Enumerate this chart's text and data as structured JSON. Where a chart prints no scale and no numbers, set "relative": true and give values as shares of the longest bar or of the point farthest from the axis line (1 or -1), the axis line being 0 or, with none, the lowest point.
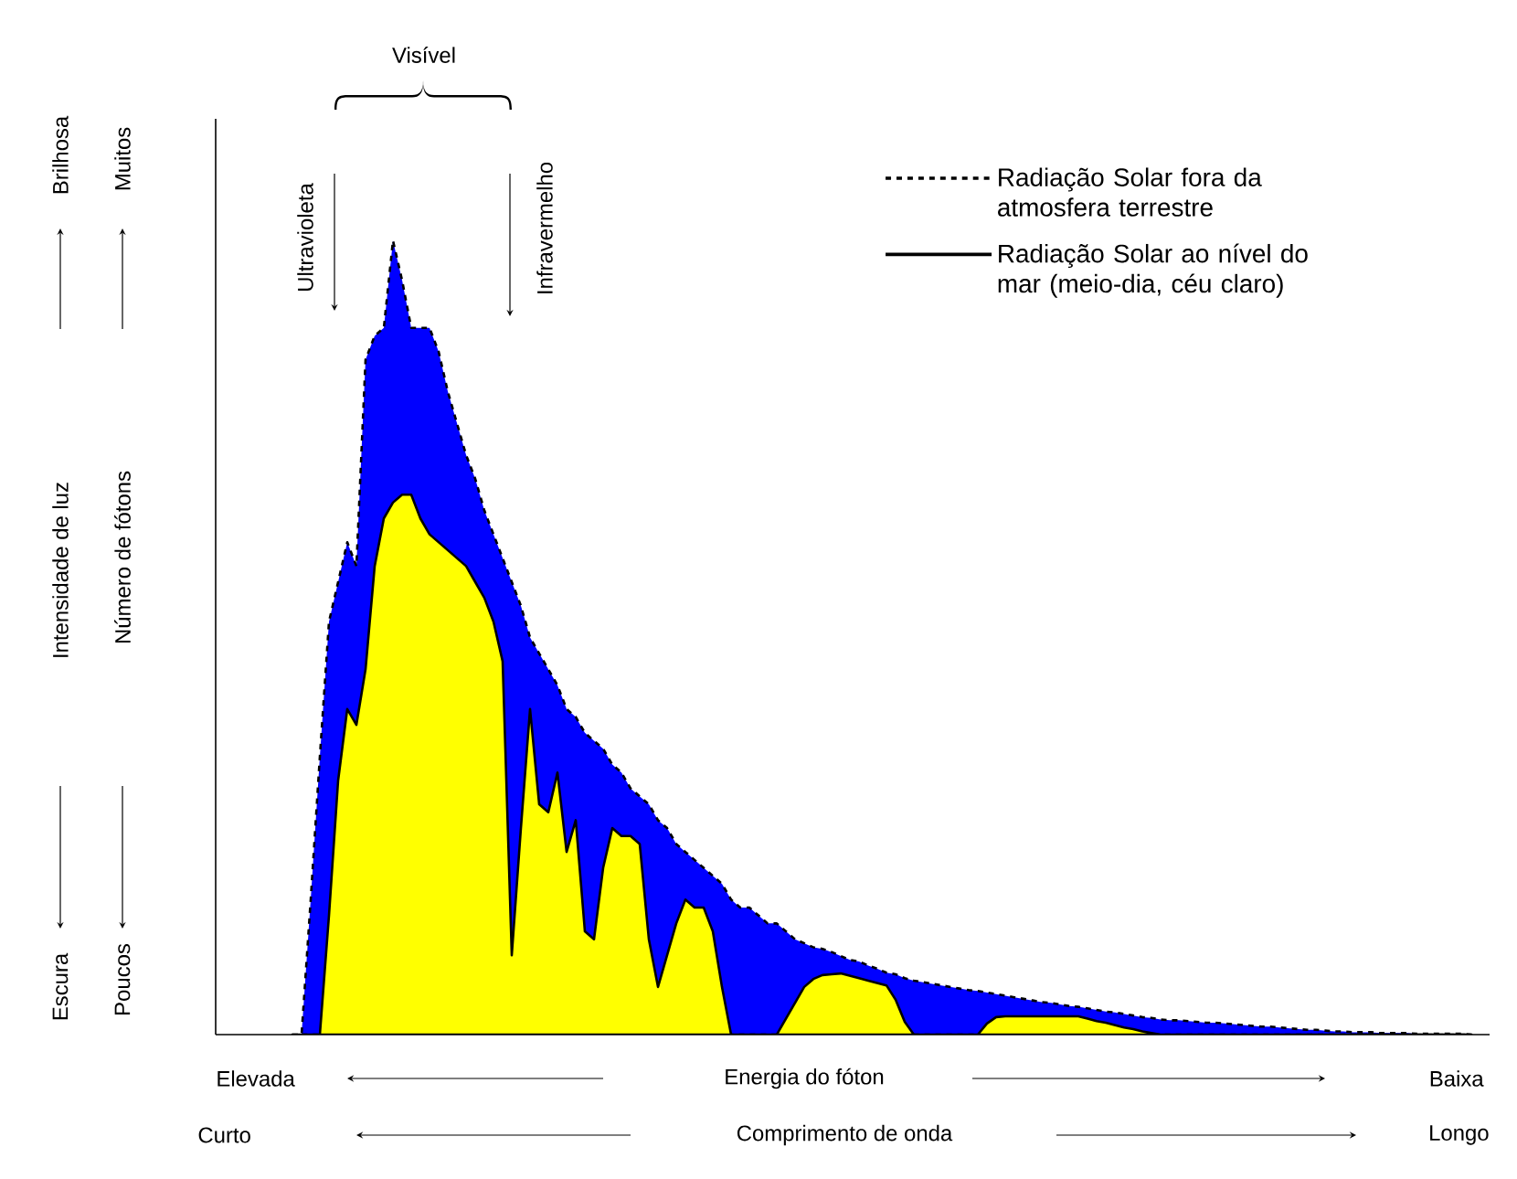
{
  "chart_data": {
    "type": "area",
    "relative": true,
    "legend": "top right",
    "categories": [
      null,
      null,
      null,
      null,
      null,
      null,
      null,
      null,
      null,
      null,
      null,
      null,
      null,
      null,
      null,
      null,
      null,
      null,
      null,
      null,
      null,
      null,
      null,
      null,
      null,
      null,
      null,
      null,
      null,
      null,
      null,
      null,
      null,
      null,
      null,
      null,
      null,
      null,
      null,
      null,
      null,
      null,
      null,
      null,
      null,
      null,
      null,
      null,
      null,
      null,
      null,
      null,
      null,
      null,
      null,
      null,
      null,
      null,
      null,
      null,
      null,
      null,
      null,
      null,
      null,
      null,
      null,
      null,
      null,
      null,
      null,
      null,
      null,
      null,
      null,
      null,
      null,
      null,
      null,
      null,
      null,
      null,
      null,
      null,
      null,
      null,
      null,
      null,
      null,
      null,
      null,
      null,
      null,
      null,
      null,
      null,
      null,
      null,
      null,
      null,
      null,
      null,
      null,
      null,
      null,
      null,
      null,
      null,
      null,
      null,
      null,
      null,
      null,
      null,
      null,
      null,
      null,
      null,
      null,
      null,
      null,
      null,
      null,
      null,
      null,
      null,
      null,
      null,
      null,
      null
    ],
    "series": [
      {
        "name": "Radiação Solar fora da atmosfera terrestre",
        "color": "#0000ff",
        "line_style": "dashed",
        "values": [
          0,
          0,
          0.17,
          0.35,
          0.52,
          0.57,
          0.62,
          0.59,
          0.85,
          0.88,
          0.89,
          1,
          0.95,
          0.89,
          0.89,
          0.89,
          0.86,
          0.81,
          0.77,
          0.73,
          0.7,
          0.66,
          0.63,
          0.6,
          0.57,
          0.54,
          0.5,
          0.48,
          0.46,
          0.44,
          0.41,
          0.4,
          0.38,
          0.37,
          0.36,
          0.34,
          0.33,
          0.31,
          0.3,
          0.29,
          0.27,
          0.26,
          0.24,
          0.23,
          0.22,
          0.21,
          0.2,
          0.19,
          0.17,
          0.16,
          0.16,
          0.15,
          0.14,
          0.14,
          0.13,
          0.12,
          0.115,
          0.11,
          0.108,
          0.104,
          0.099,
          0.094,
          0.092,
          0.087,
          0.083,
          0.078,
          0.076,
          0.071,
          0.068,
          0.066,
          0.064,
          0.062,
          0.06,
          0.058,
          0.056,
          0.055,
          0.053,
          0.051,
          0.049,
          0.047,
          0.045,
          0.043,
          0.041,
          0.04,
          0.038,
          0.036,
          0.035,
          0.033,
          0.031,
          0.029,
          0.028,
          0.026,
          0.024,
          0.022,
          0.021,
          0.019,
          0.018,
          0.018,
          0.017,
          0.016,
          0.015,
          0.015,
          0.014,
          0.013,
          0.012,
          0.011,
          0.01,
          0.01,
          0.009,
          0.008,
          0.007,
          0.006,
          0.006,
          0.005,
          0.004,
          0.004,
          0.003,
          0.003,
          0.003,
          0.002,
          0.002,
          0.002,
          0.002,
          0.001,
          0.001,
          0.001,
          0.001,
          0.001,
          0.001,
          0
        ]
      },
      {
        "name": "Radiação Solar ao nível do mar (meio-dia, céu claro)",
        "color": "#ffff00",
        "line_style": "solid",
        "values": [
          0,
          0,
          0,
          0,
          0.15,
          0.32,
          0.41,
          0.39,
          0.46,
          0.59,
          0.65,
          0.67,
          0.68,
          0.68,
          0.65,
          0.63,
          0.62,
          0.61,
          0.6,
          0.59,
          0.57,
          0.55,
          0.52,
          0.47,
          0.1,
          0.26,
          0.41,
          0.29,
          0.28,
          0.33,
          0.23,
          0.27,
          0.13,
          0.12,
          0.21,
          0.26,
          0.25,
          0.25,
          0.24,
          0.12,
          0.06,
          0.1,
          0.14,
          0.17,
          0.16,
          0.16,
          0.13,
          0.06,
          0,
          0,
          0,
          0,
          0,
          0,
          0.02,
          0.04,
          0.06,
          0.07,
          0.075,
          0.076,
          0.077,
          0.074,
          0.071,
          0.068,
          0.065,
          0.062,
          0.044,
          0.016,
          0,
          0,
          0,
          0,
          0,
          0,
          0,
          0,
          0.014,
          0.022,
          0.023,
          0.023,
          0.023,
          0.023,
          0.023,
          0.023,
          0.023,
          0.023,
          0.023,
          0.02,
          0.017,
          0.015,
          0.012,
          0.009,
          0.007,
          0.004,
          0.002,
          0,
          0,
          0,
          0,
          0,
          0,
          0,
          0,
          0,
          0,
          0,
          0,
          0,
          0,
          0,
          0,
          0,
          0,
          0,
          0,
          0,
          0,
          0,
          0,
          0,
          0,
          0,
          0,
          0,
          0,
          0,
          0,
          0,
          0,
          0
        ]
      }
    ],
    "annotations": [
      "Visível",
      "Ultravioleta",
      "Infravermelho",
      "Brilhosa",
      "Intensidade de luz",
      "Escura",
      "Muitos",
      "Número de fótons",
      "Poucos",
      "Elevada",
      "Energia do fóton",
      "Baixa",
      "Curto",
      "Comprimento de onda",
      "Longo"
    ]
  }
}
